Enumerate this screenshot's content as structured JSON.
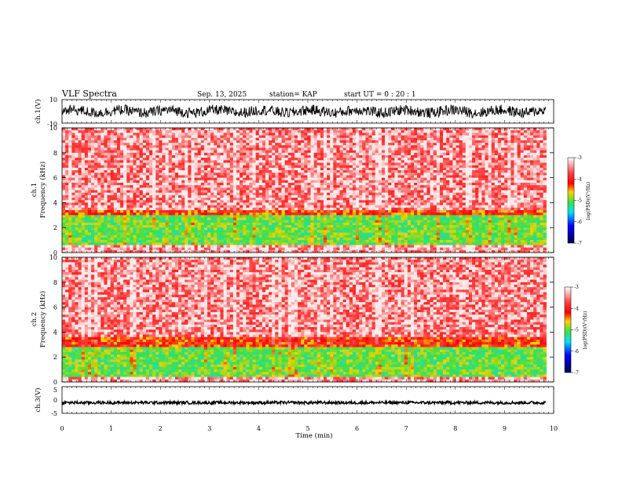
{
  "header": {
    "title": "VLF Spectra",
    "date": "Sep. 13, 2025",
    "station": "station= KAP",
    "start": "start  UT  =   0  : 20 : 1"
  },
  "colors": {
    "high": "#ff1a1a",
    "mid": "#ffd400",
    "low_green": "#39e639",
    "cyan": "#00d8ff",
    "blue": "#0000ff",
    "navy": "#000060"
  },
  "chart_data": [
    {
      "type": "line",
      "name": "ch1-waveform",
      "ylabel": "ch.1(V)",
      "ylim": [
        -10,
        10
      ],
      "yticks": [
        "10",
        "-10"
      ],
      "xlim": [
        0,
        10
      ],
      "description_values": "noisy waveform, amplitude about ±5 V"
    },
    {
      "type": "heatmap",
      "name": "ch1-spectrogram",
      "ylabel": "ch.1\nFrequency (kHz)",
      "ylim": [
        0,
        10
      ],
      "yticks": [
        "0",
        "2",
        "4",
        "6",
        "8",
        "10"
      ],
      "xlim": [
        0,
        9.85
      ],
      "colorbar": {
        "label": "log(PSD)(V²/Hz)",
        "range": [
          -7,
          -3
        ],
        "ticks": [
          "-3",
          "-4",
          "-5",
          "-6",
          "-7"
        ]
      },
      "bands": [
        {
          "from_khz": 0,
          "to_khz": 0.6,
          "level": -3.2
        },
        {
          "from_khz": 0.6,
          "to_khz": 3.0,
          "level": -4.9
        },
        {
          "from_khz": 3.0,
          "to_khz": 3.5,
          "level": -4.1
        },
        {
          "from_khz": 3.5,
          "to_khz": 10,
          "level": -3.3
        }
      ]
    },
    {
      "type": "heatmap",
      "name": "ch2-spectrogram",
      "ylabel": "ch.2\nFrequency (kHz)",
      "ylim": [
        0,
        10
      ],
      "yticks": [
        "0",
        "2",
        "4",
        "6",
        "8",
        "10"
      ],
      "xlim": [
        0,
        9.85
      ],
      "colorbar": {
        "label": "log(PSD)(V²/Hz)",
        "range": [
          -7,
          -3
        ],
        "ticks": [
          "-3",
          "-4",
          "-5",
          "-6",
          "-7"
        ]
      },
      "bands": [
        {
          "from_khz": 0,
          "to_khz": 0.4,
          "level": -3.2
        },
        {
          "from_khz": 0.4,
          "to_khz": 2.8,
          "level": -4.9
        },
        {
          "from_khz": 2.8,
          "to_khz": 3.6,
          "level": -4.0
        },
        {
          "from_khz": 3.6,
          "to_khz": 10,
          "level": -3.3
        }
      ]
    },
    {
      "type": "line",
      "name": "ch3-waveform",
      "ylabel": "ch.3(V)",
      "ylim": [
        -5,
        5
      ],
      "yticks": [
        "5",
        "0",
        "-5"
      ],
      "xlim": [
        0,
        10
      ],
      "description_values": "flat noisy trace near -1 V"
    }
  ],
  "xaxis": {
    "label": "Time  (min)",
    "ticks": [
      "0",
      "1",
      "2",
      "3",
      "4",
      "5",
      "6",
      "7",
      "8",
      "9",
      "10"
    ],
    "range": [
      0,
      10
    ]
  }
}
